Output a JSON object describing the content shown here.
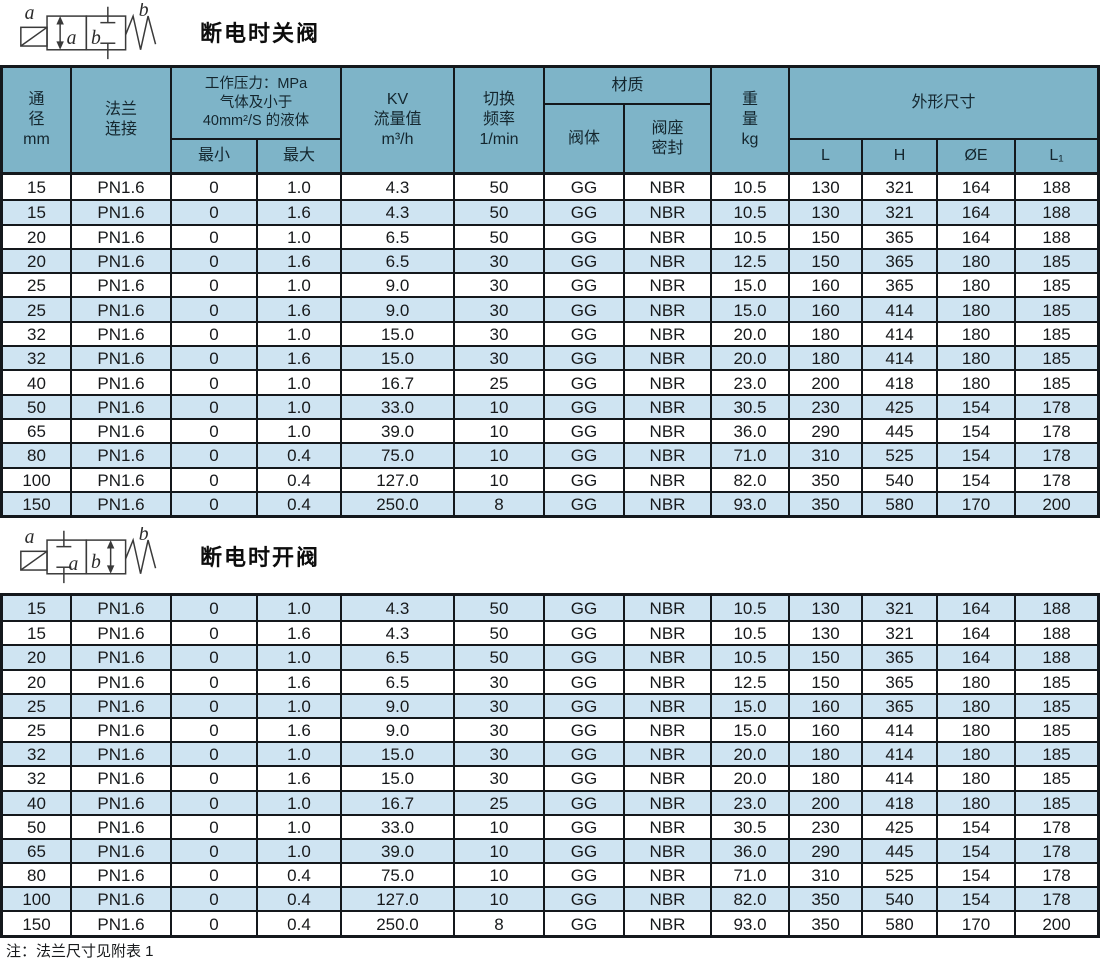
{
  "sections": {
    "title1": "断电时关阀",
    "title2": "断电时开阀",
    "note": "注：法兰尺寸见附表 1"
  },
  "symbol1": {
    "port_left": "a",
    "port_right": "b",
    "chamber1": "a",
    "chamber2": "b"
  },
  "symbol2": {
    "port_left": "a",
    "port_right": "b",
    "chamber1": "a",
    "chamber2": "b"
  },
  "header": {
    "diameter": [
      "通",
      "径",
      "mm"
    ],
    "flange": [
      "法兰",
      "连接"
    ],
    "pressure_title": [
      "工作压力：MPa",
      "气体及小于",
      "40mm²/S 的液体"
    ],
    "pressure_min": "最小",
    "pressure_max": "最大",
    "kv": [
      "KV",
      "流量值",
      "m³/h"
    ],
    "frequency": [
      "切换",
      "频率",
      "1/min"
    ],
    "material": "材质",
    "material_body": "阀体",
    "material_seat": [
      "阀座",
      "密封"
    ],
    "weight": [
      "重",
      "量",
      "kg"
    ],
    "dimensions": "外形尺寸",
    "dim_l": "L",
    "dim_h": "H",
    "dim_oe": "ØE",
    "dim_l1": "L₁"
  },
  "table1": {
    "rows": [
      [
        "15",
        "PN1.6",
        "0",
        "1.0",
        "4.3",
        "50",
        "GG",
        "NBR",
        "10.5",
        "130",
        "321",
        "164",
        "188"
      ],
      [
        "15",
        "PN1.6",
        "0",
        "1.6",
        "4.3",
        "50",
        "GG",
        "NBR",
        "10.5",
        "130",
        "321",
        "164",
        "188"
      ],
      [
        "20",
        "PN1.6",
        "0",
        "1.0",
        "6.5",
        "50",
        "GG",
        "NBR",
        "10.5",
        "150",
        "365",
        "164",
        "188"
      ],
      [
        "20",
        "PN1.6",
        "0",
        "1.6",
        "6.5",
        "30",
        "GG",
        "NBR",
        "12.5",
        "150",
        "365",
        "180",
        "185"
      ],
      [
        "25",
        "PN1.6",
        "0",
        "1.0",
        "9.0",
        "30",
        "GG",
        "NBR",
        "15.0",
        "160",
        "365",
        "180",
        "185"
      ],
      [
        "25",
        "PN1.6",
        "0",
        "1.6",
        "9.0",
        "30",
        "GG",
        "NBR",
        "15.0",
        "160",
        "414",
        "180",
        "185"
      ],
      [
        "32",
        "PN1.6",
        "0",
        "1.0",
        "15.0",
        "30",
        "GG",
        "NBR",
        "20.0",
        "180",
        "414",
        "180",
        "185"
      ],
      [
        "32",
        "PN1.6",
        "0",
        "1.6",
        "15.0",
        "30",
        "GG",
        "NBR",
        "20.0",
        "180",
        "414",
        "180",
        "185"
      ],
      [
        "40",
        "PN1.6",
        "0",
        "1.0",
        "16.7",
        "25",
        "GG",
        "NBR",
        "23.0",
        "200",
        "418",
        "180",
        "185"
      ],
      [
        "50",
        "PN1.6",
        "0",
        "1.0",
        "33.0",
        "10",
        "GG",
        "NBR",
        "30.5",
        "230",
        "425",
        "154",
        "178"
      ],
      [
        "65",
        "PN1.6",
        "0",
        "1.0",
        "39.0",
        "10",
        "GG",
        "NBR",
        "36.0",
        "290",
        "445",
        "154",
        "178"
      ],
      [
        "80",
        "PN1.6",
        "0",
        "0.4",
        "75.0",
        "10",
        "GG",
        "NBR",
        "71.0",
        "310",
        "525",
        "154",
        "178"
      ],
      [
        "100",
        "PN1.6",
        "0",
        "0.4",
        "127.0",
        "10",
        "GG",
        "NBR",
        "82.0",
        "350",
        "540",
        "154",
        "178"
      ],
      [
        "150",
        "PN1.6",
        "0",
        "0.4",
        "250.0",
        "8",
        "GG",
        "NBR",
        "93.0",
        "350",
        "580",
        "170",
        "200"
      ]
    ]
  },
  "table2": {
    "rows": [
      [
        "15",
        "PN1.6",
        "0",
        "1.0",
        "4.3",
        "50",
        "GG",
        "NBR",
        "10.5",
        "130",
        "321",
        "164",
        "188"
      ],
      [
        "15",
        "PN1.6",
        "0",
        "1.6",
        "4.3",
        "50",
        "GG",
        "NBR",
        "10.5",
        "130",
        "321",
        "164",
        "188"
      ],
      [
        "20",
        "PN1.6",
        "0",
        "1.0",
        "6.5",
        "50",
        "GG",
        "NBR",
        "10.5",
        "150",
        "365",
        "164",
        "188"
      ],
      [
        "20",
        "PN1.6",
        "0",
        "1.6",
        "6.5",
        "30",
        "GG",
        "NBR",
        "12.5",
        "150",
        "365",
        "180",
        "185"
      ],
      [
        "25",
        "PN1.6",
        "0",
        "1.0",
        "9.0",
        "30",
        "GG",
        "NBR",
        "15.0",
        "160",
        "365",
        "180",
        "185"
      ],
      [
        "25",
        "PN1.6",
        "0",
        "1.6",
        "9.0",
        "30",
        "GG",
        "NBR",
        "15.0",
        "160",
        "414",
        "180",
        "185"
      ],
      [
        "32",
        "PN1.6",
        "0",
        "1.0",
        "15.0",
        "30",
        "GG",
        "NBR",
        "20.0",
        "180",
        "414",
        "180",
        "185"
      ],
      [
        "32",
        "PN1.6",
        "0",
        "1.6",
        "15.0",
        "30",
        "GG",
        "NBR",
        "20.0",
        "180",
        "414",
        "180",
        "185"
      ],
      [
        "40",
        "PN1.6",
        "0",
        "1.0",
        "16.7",
        "25",
        "GG",
        "NBR",
        "23.0",
        "200",
        "418",
        "180",
        "185"
      ],
      [
        "50",
        "PN1.6",
        "0",
        "1.0",
        "33.0",
        "10",
        "GG",
        "NBR",
        "30.5",
        "230",
        "425",
        "154",
        "178"
      ],
      [
        "65",
        "PN1.6",
        "0",
        "1.0",
        "39.0",
        "10",
        "GG",
        "NBR",
        "36.0",
        "290",
        "445",
        "154",
        "178"
      ],
      [
        "80",
        "PN1.6",
        "0",
        "0.4",
        "75.0",
        "10",
        "GG",
        "NBR",
        "71.0",
        "310",
        "525",
        "154",
        "178"
      ],
      [
        "100",
        "PN1.6",
        "0",
        "0.4",
        "127.0",
        "10",
        "GG",
        "NBR",
        "82.0",
        "350",
        "540",
        "154",
        "178"
      ],
      [
        "150",
        "PN1.6",
        "0",
        "0.4",
        "250.0",
        "8",
        "GG",
        "NBR",
        "93.0",
        "350",
        "580",
        "170",
        "200"
      ]
    ]
  },
  "colors": {
    "header_bg": "#7eb4c8",
    "stripe_blue": "#cfe4f2",
    "grid_line": "#14181c"
  }
}
